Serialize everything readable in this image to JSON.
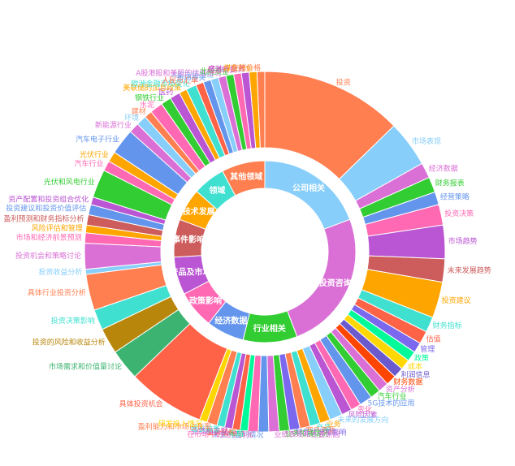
{
  "chart_data": {
    "type": "sunburst",
    "title": "",
    "inner_ring": [
      {
        "label": "公司相关",
        "value": 20,
        "color": "#87CEFA"
      },
      {
        "label": "投资咨询",
        "value": 26,
        "color": "#DA70D6"
      },
      {
        "label": "行业相关",
        "value": 10,
        "color": "#32CD32"
      },
      {
        "label": "经济数据",
        "value": 7,
        "color": "#6495ED"
      },
      {
        "label": "政策影响",
        "value": 7,
        "color": "#FF69B4"
      },
      {
        "label": "产品及市场",
        "value": 7,
        "color": "#BA55D3"
      },
      {
        "label": "事件影响",
        "value": 7,
        "color": "#CD5C5C"
      },
      {
        "label": "技术发展",
        "value": 6,
        "color": "#FFA500"
      },
      {
        "label": "领域",
        "value": 6,
        "color": "#40E0D0"
      },
      {
        "label": "其他领域",
        "value": 8,
        "color": "#FF7F50"
      }
    ],
    "outer_ring": [
      {
        "label": "投资",
        "value": 55,
        "color": "#FF7F50"
      },
      {
        "label": "市场表现",
        "value": 18,
        "color": "#87CEFA"
      },
      {
        "label": "经济数据",
        "value": 6,
        "color": "#DA70D6"
      },
      {
        "label": "财务报表",
        "value": 6,
        "color": "#32CD32"
      },
      {
        "label": "经营策略",
        "value": 5,
        "color": "#6495ED"
      },
      {
        "label": "投资决策",
        "value": 8,
        "color": "#FF69B4"
      },
      {
        "label": "市场趋势",
        "value": 13,
        "color": "#BA55D3"
      },
      {
        "label": "未来发展趋势",
        "value": 9,
        "color": "#CD5C5C"
      },
      {
        "label": "投资建议",
        "value": 14,
        "color": "#FFA500"
      },
      {
        "label": "财务指标",
        "value": 6,
        "color": "#40E0D0"
      },
      {
        "label": "估值",
        "value": 5,
        "color": "#FF6347"
      },
      {
        "label": "管理",
        "value": 4,
        "color": "#7B68EE"
      },
      {
        "label": "政策",
        "value": 4,
        "color": "#00FA9A"
      },
      {
        "label": "成本",
        "value": 4,
        "color": "#FFD700"
      },
      {
        "label": "利润信息",
        "value": 4,
        "color": "#6A5ACD"
      },
      {
        "label": "财务数据",
        "value": 4,
        "color": "#FF4500"
      },
      {
        "label": "资产分析",
        "value": 4,
        "color": "#DA70D6"
      },
      {
        "label": "汽车行业",
        "value": 4,
        "color": "#32CD32"
      },
      {
        "label": "5G技术的应用",
        "value": 5,
        "color": "#6495ED"
      },
      {
        "label": "变化",
        "value": 4,
        "color": "#FF69B4"
      },
      {
        "label": "风险因素",
        "value": 4,
        "color": "#BA55D3"
      },
      {
        "label": "未来的发展方向",
        "value": 5,
        "color": "#87CEFA"
      },
      {
        "label": "业务",
        "value": 4,
        "color": "#FFA500"
      },
      {
        "label": "产品",
        "value": 4,
        "color": "#40E0D0"
      },
      {
        "label": "客户资源",
        "value": 4,
        "color": "#FF7F50"
      },
      {
        "label": "财务状况和影响",
        "value": 4,
        "color": "#7B68EE"
      },
      {
        "label": "业务拓展情况",
        "value": 4,
        "color": "#32CD32"
      },
      {
        "label": "业绩表现和主要原因",
        "value": 4,
        "color": "#DA70D6"
      },
      {
        "label": "未来的盈利情况",
        "value": 4,
        "color": "#6495ED"
      },
      {
        "label": "在市场中的竞争情况",
        "value": 4,
        "color": "#FF69B4"
      },
      {
        "label": "布局",
        "value": 3,
        "color": "#00FA9A"
      },
      {
        "label": "业务结构",
        "value": 3,
        "color": "#FF6347"
      },
      {
        "label": "业绩和表现",
        "value": 3,
        "color": "#BA55D3"
      },
      {
        "label": "增长前景",
        "value": 3,
        "color": "#40E0D0"
      },
      {
        "label": "盈利能力和市场占有率",
        "value": 4,
        "color": "#FF7F50"
      },
      {
        "label": "研发投入情况",
        "value": 3,
        "color": "#FFD700"
      },
      {
        "label": "具体投资机会",
        "value": 30,
        "color": "#FF6347"
      },
      {
        "label": "市场需求和价值量讨论",
        "value": 12,
        "color": "#3CB371"
      },
      {
        "label": "投资的风险和收益分析",
        "value": 10,
        "color": "#B8860B"
      },
      {
        "label": "投资决策影响",
        "value": 8,
        "color": "#40E0D0"
      },
      {
        "label": "具体行业投资分析",
        "value": 14,
        "color": "#FF7F50"
      },
      {
        "label": "投资收益分析",
        "value": 2,
        "color": "#87CEFA"
      },
      {
        "label": "投资机会和策略讨论",
        "value": 10,
        "color": "#DA70D6"
      },
      {
        "label": "市场和经济前景预测",
        "value": 4,
        "color": "#FF69B4"
      },
      {
        "label": "风险评估和管理",
        "value": 3,
        "color": "#FFA500"
      },
      {
        "label": "盈利预测和财务指标分析",
        "value": 4,
        "color": "#CD5C5C"
      },
      {
        "label": "投资建议和投资价值评估",
        "value": 4,
        "color": "#6495ED"
      },
      {
        "label": "资产配置和投资组合优化",
        "value": 3,
        "color": "#BA55D3"
      },
      {
        "label": "光伏和风电行业",
        "value": 11,
        "color": "#32CD32"
      },
      {
        "label": "汽车行业",
        "value": 4,
        "color": "#FF69B4"
      },
      {
        "label": "光伏行业",
        "value": 4,
        "color": "#FFA500"
      },
      {
        "label": "汽车电子行业",
        "value": 10,
        "color": "#6495ED"
      },
      {
        "label": "新能源行业",
        "value": 4,
        "color": "#DA70D6"
      },
      {
        "label": "环境",
        "value": 4,
        "color": "#87CEFA"
      },
      {
        "label": "建材",
        "value": 3,
        "color": "#FF7F50"
      },
      {
        "label": "水泥",
        "value": 5,
        "color": "#FF69B4"
      },
      {
        "label": "钢铁行业",
        "value": 4,
        "color": "#32CD32"
      },
      {
        "label": "医药",
        "value": 4,
        "color": "#BA55D3"
      },
      {
        "label": "美联储的加息政策",
        "value": 3,
        "color": "#FFA500"
      },
      {
        "label": "欧洲金融市场变化",
        "value": 4,
        "color": "#40E0D0"
      },
      {
        "label": "人民币汇率",
        "value": 3,
        "color": "#FF6347"
      },
      {
        "label": "市场冲突",
        "value": 3,
        "color": "#6495ED"
      },
      {
        "label": "A股市场表现",
        "value": 3,
        "color": "#87CEFA"
      },
      {
        "label": "A股港股和美股的估值情况",
        "value": 3,
        "color": "#DA70D6"
      },
      {
        "label": "北向资金",
        "value": 3,
        "color": "#32CD32"
      },
      {
        "label": "经济恢复",
        "value": 3,
        "color": "#FF69B4"
      },
      {
        "label": "房地产投资",
        "value": 3,
        "color": "#BA55D3"
      },
      {
        "label": "煤炭行业",
        "value": 3,
        "color": "#FFA500"
      },
      {
        "label": "生猪价格",
        "value": 3,
        "color": "#FF7F50"
      }
    ]
  }
}
